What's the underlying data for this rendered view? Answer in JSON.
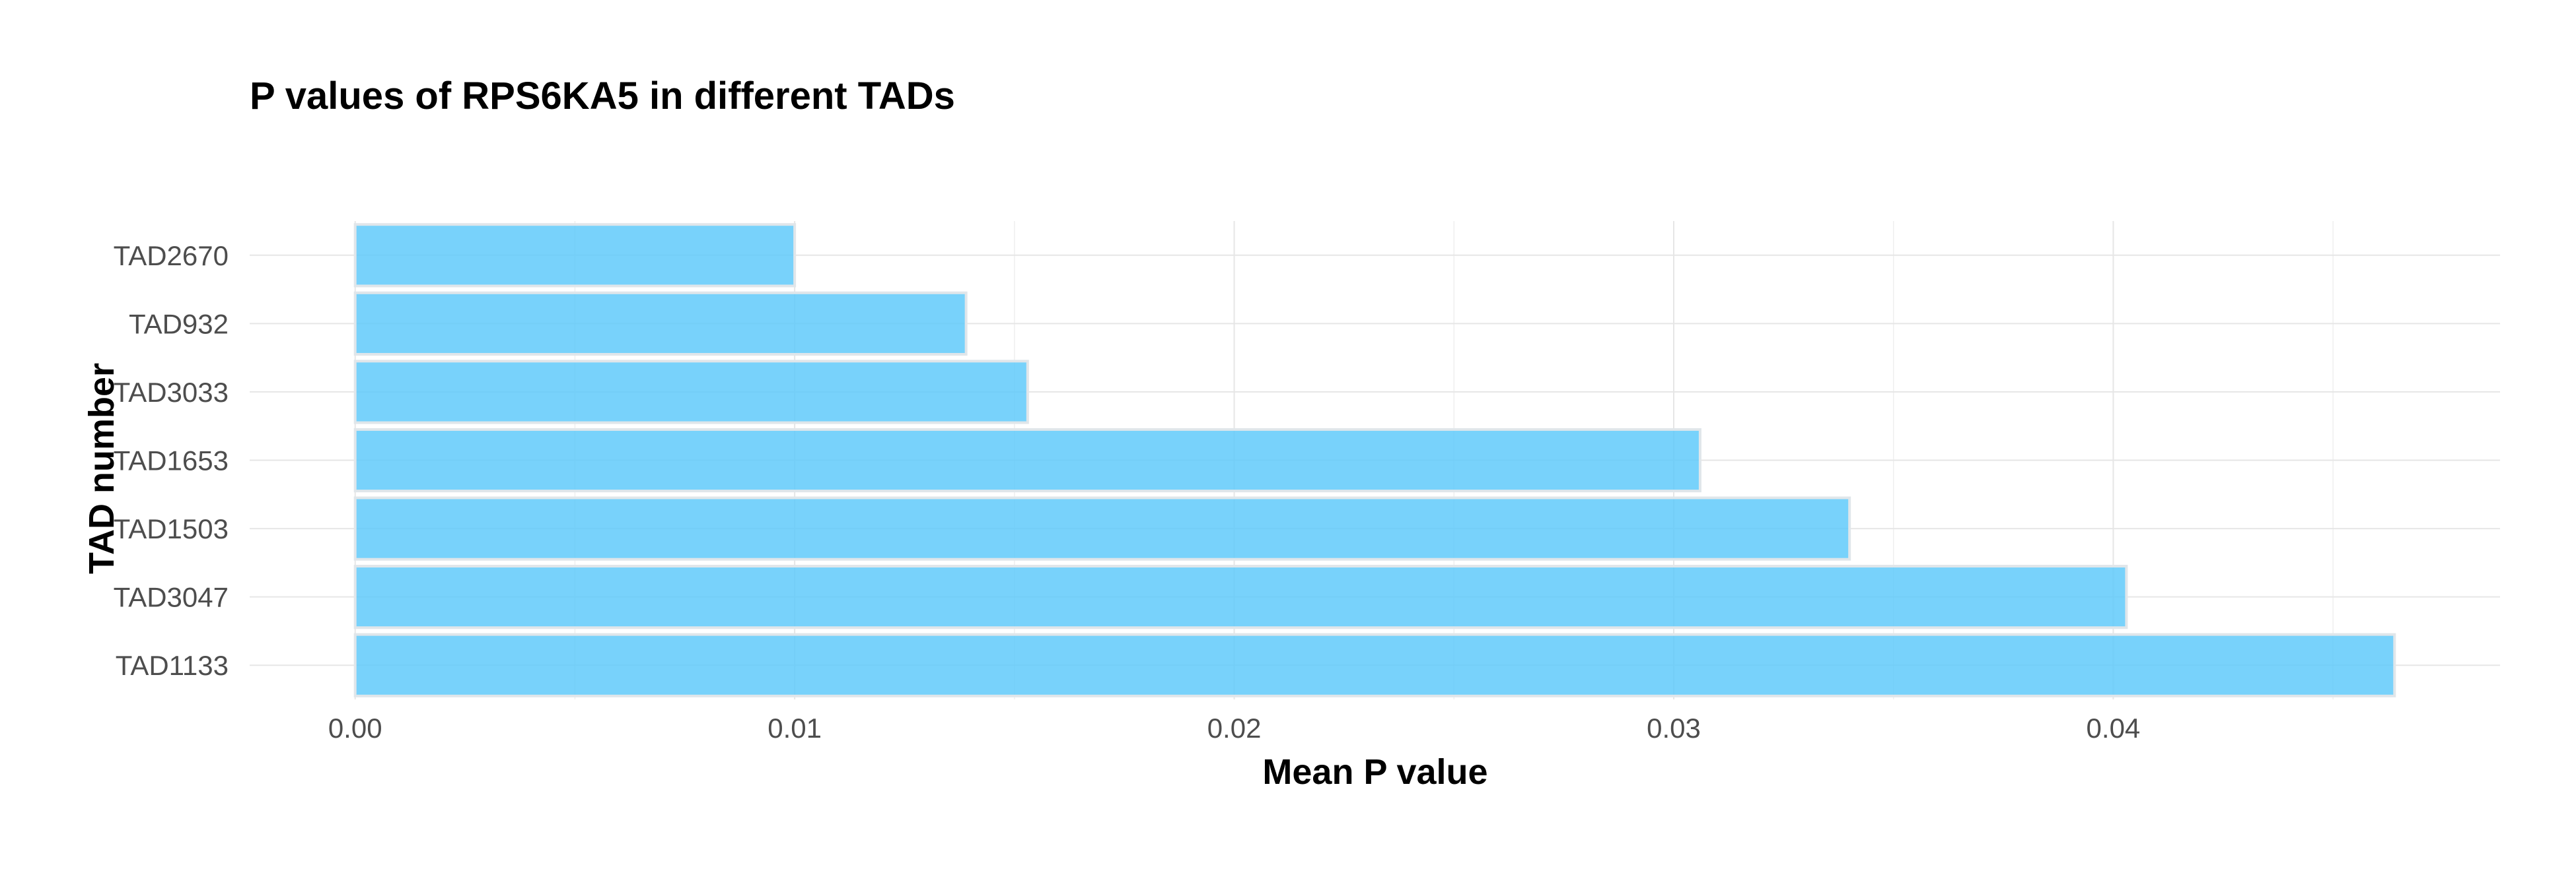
{
  "chart_data": {
    "type": "bar",
    "orientation": "horizontal",
    "title": "P values of RPS6KA5 in different TADs",
    "xlabel": "Mean P value",
    "ylabel": "TAD number",
    "categories": [
      "TAD2670",
      "TAD932",
      "TAD3033",
      "TAD1653",
      "TAD1503",
      "TAD3047",
      "TAD1133"
    ],
    "values": [
      0.01,
      0.0139,
      0.0153,
      0.0306,
      0.034,
      0.0403,
      0.0464
    ],
    "xlim": [
      -0.0024,
      0.0488
    ],
    "xticks": [
      0.0,
      0.01,
      0.02,
      0.03,
      0.04
    ],
    "xtick_labels": [
      "0.00",
      "0.01",
      "0.02",
      "0.03",
      "0.04"
    ],
    "grid": true,
    "legend": "none",
    "bar_color": "#5ac8fa"
  }
}
